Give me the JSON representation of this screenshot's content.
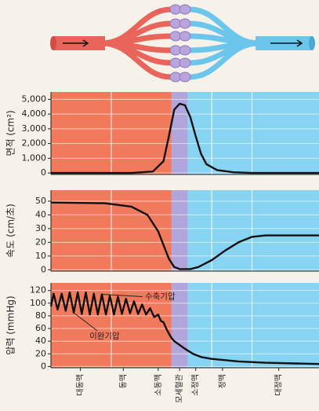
{
  "chart_data": [
    {
      "type": "line",
      "y_label": "면적 (cm²)",
      "ylim": [
        -100,
        5500
      ],
      "yticks": [
        0,
        {
          "value": 1000,
          "label": "1,000"
        },
        {
          "value": 2000,
          "label": "2,000"
        },
        {
          "value": 3000,
          "label": "3,000"
        },
        {
          "value": 4000,
          "label": "4,000"
        },
        {
          "value": 5000,
          "label": "5,000"
        }
      ],
      "xlim": [
        0,
        100
      ],
      "xgrid": [
        22.5,
        60,
        75
      ],
      "regions": [
        {
          "from": 0,
          "to": 45,
          "color": "#f27a5c"
        },
        {
          "from": 45,
          "to": 51,
          "color": "#b1a6dc"
        },
        {
          "from": 51,
          "to": 100,
          "color": "#86d3f2"
        }
      ],
      "series": [
        {
          "color": "#111111",
          "x": [
            0,
            30,
            38,
            42,
            44,
            46,
            48,
            50,
            52,
            54,
            56,
            58,
            62,
            68,
            75,
            100
          ],
          "values": [
            0,
            0,
            100,
            800,
            2500,
            4300,
            4700,
            4600,
            3800,
            2500,
            1300,
            600,
            200,
            50,
            0,
            0
          ]
        }
      ]
    },
    {
      "type": "line",
      "y_label": "속도 (cm/초)",
      "ylim": [
        -1,
        58
      ],
      "yticks": [
        0,
        10,
        20,
        30,
        40,
        50
      ],
      "xlim": [
        0,
        100
      ],
      "xgrid": [
        22.5,
        60,
        75
      ],
      "regions": [
        {
          "from": 0,
          "to": 45,
          "color": "#f27a5c"
        },
        {
          "from": 45,
          "to": 51,
          "color": "#b1a6dc"
        },
        {
          "from": 51,
          "to": 100,
          "color": "#86d3f2"
        }
      ],
      "series": [
        {
          "color": "#111111",
          "x": [
            0,
            20,
            30,
            36,
            40,
            42,
            44,
            46,
            48,
            52,
            55,
            60,
            65,
            70,
            75,
            80,
            100
          ],
          "values": [
            49,
            48.5,
            46,
            40,
            28,
            18,
            8,
            2,
            0.5,
            0.5,
            2,
            7,
            14,
            20,
            24,
            25,
            25
          ]
        }
      ]
    },
    {
      "type": "line",
      "y_label": "압력 (mmHg)",
      "ylim": [
        -2,
        132
      ],
      "yticks": [
        0,
        20,
        40,
        60,
        80,
        100,
        120
      ],
      "xlim": [
        0,
        100
      ],
      "xgrid": [
        22.5,
        60,
        75
      ],
      "regions": [
        {
          "from": 0,
          "to": 45,
          "color": "#f27a5c"
        },
        {
          "from": 45,
          "to": 51,
          "color": "#b1a6dc"
        },
        {
          "from": 51,
          "to": 100,
          "color": "#86d3f2"
        }
      ],
      "xticks": [
        {
          "value": 11,
          "label": "대동맥"
        },
        {
          "value": 27,
          "label": "동맥"
        },
        {
          "value": 40,
          "label": "소동맥"
        },
        {
          "value": 48,
          "label": "모세혈관"
        },
        {
          "value": 54,
          "label": "소정맥"
        },
        {
          "value": 64,
          "label": "정맥"
        },
        {
          "value": 85,
          "label": "대정맥"
        }
      ],
      "annotations": [
        {
          "text": "수축기압",
          "x": 19,
          "y": 114
        },
        {
          "text": "이완기압",
          "x": 8.5,
          "y": 85
        }
      ],
      "series": [
        {
          "color": "#111111",
          "x": [
            0,
            1,
            2.5,
            4,
            5.5,
            7,
            8.5,
            10,
            11.5,
            13,
            14.5,
            16,
            17.5,
            19,
            20.5,
            22,
            23.5,
            25,
            26.5,
            28,
            29.5,
            31,
            32.5,
            34,
            35.5,
            37,
            38.5,
            40,
            41,
            42,
            43,
            44,
            45,
            46,
            48,
            50,
            53,
            56,
            60,
            65,
            70,
            80,
            100
          ],
          "values": [
            95,
            115,
            90,
            115,
            88,
            117,
            85,
            117,
            83,
            117,
            82,
            115,
            82,
            114,
            82,
            112,
            82,
            110,
            83,
            107,
            84,
            103,
            83,
            98,
            82,
            92,
            78,
            82,
            72,
            70,
            60,
            52,
            45,
            40,
            34,
            28,
            20,
            15,
            12,
            10,
            8,
            6,
            4
          ]
        }
      ]
    }
  ]
}
